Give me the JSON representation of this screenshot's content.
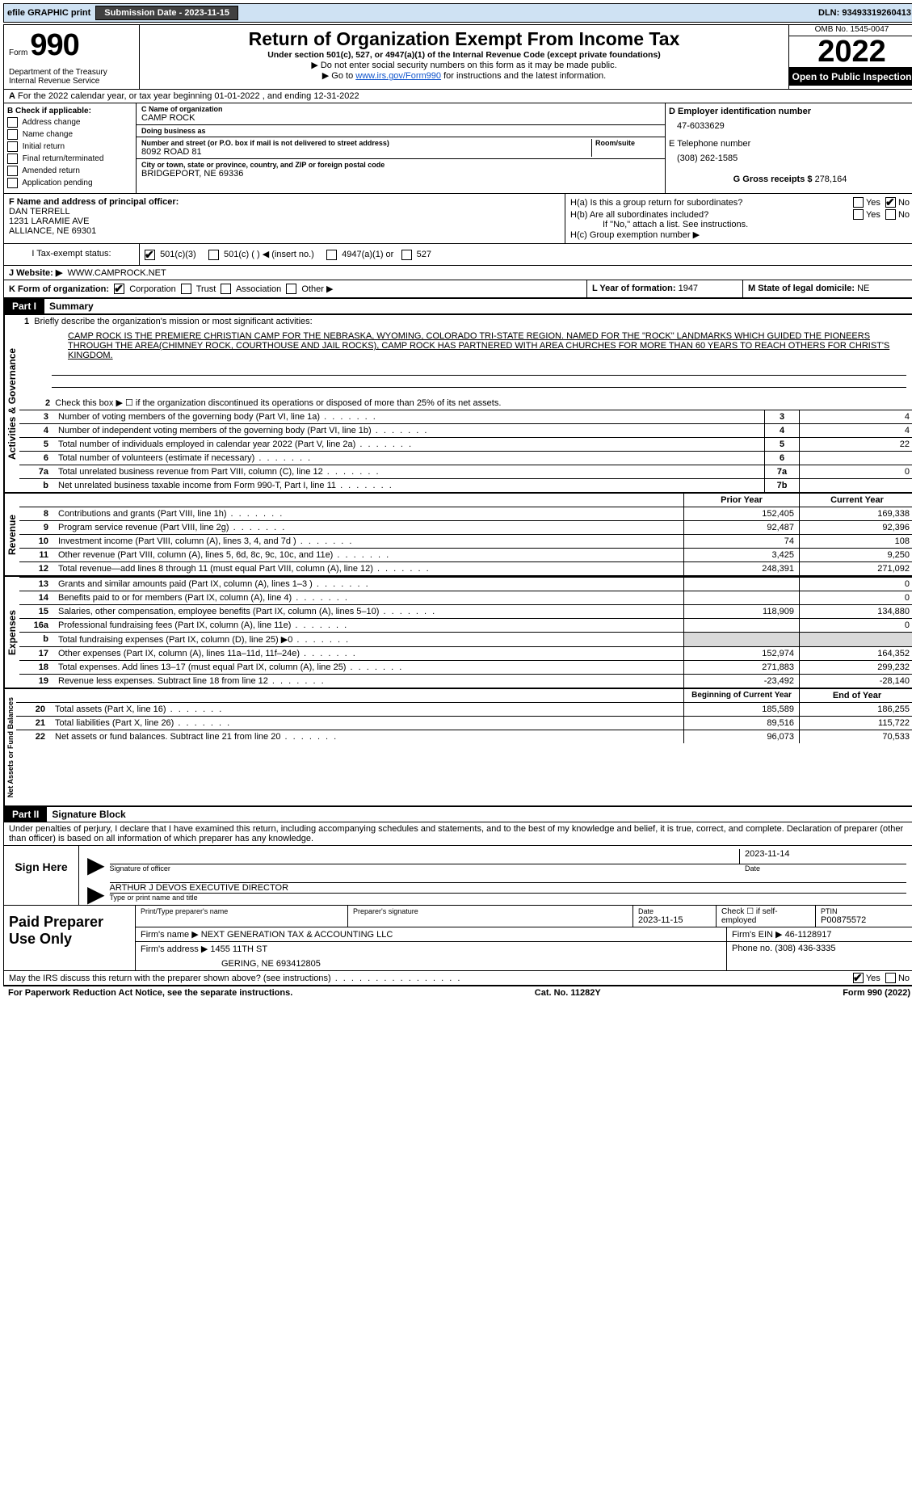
{
  "topbar": {
    "efile": "efile GRAPHIC print",
    "submission_label": "Submission Date - 2023-11-15",
    "dln_label": "DLN: 93493319260413"
  },
  "form_header": {
    "form_word": "Form",
    "form_no": "990",
    "dept": "Department of the Treasury\nInternal Revenue Service",
    "title": "Return of Organization Exempt From Income Tax",
    "subtitle": "Under section 501(c), 527, or 4947(a)(1) of the Internal Revenue Code (except private foundations)",
    "arrow1": "▶ Do not enter social security numbers on this form as it may be made public.",
    "arrow2_pre": "▶ Go to ",
    "arrow2_link": "www.irs.gov/Form990",
    "arrow2_post": " for instructions and the latest information.",
    "omb": "OMB No. 1545-0047",
    "year": "2022",
    "open": "Open to Public Inspection"
  },
  "a_line": {
    "text": "For the 2022 calendar year, or tax year beginning 01-01-2022    , and ending 12-31-2022",
    "a_label": "A"
  },
  "b": {
    "header": "B Check if applicable:",
    "opts": [
      "Address change",
      "Name change",
      "Initial return",
      "Final return/terminated",
      "Amended return",
      "Application pending"
    ]
  },
  "c": {
    "name_lbl": "C Name of organization",
    "name": "CAMP ROCK",
    "dba_lbl": "Doing business as",
    "dba": "",
    "street_lbl": "Number and street (or P.O. box if mail is not delivered to street address)",
    "street": "8092 ROAD 81",
    "room_lbl": "Room/suite",
    "city_lbl": "City or town, state or province, country, and ZIP or foreign postal code",
    "city": "BRIDGEPORT, NE  69336"
  },
  "dright": {
    "d_lbl": "D Employer identification number",
    "d_val": "47-6033629",
    "e_lbl": "E Telephone number",
    "e_val": "(308) 262-1585",
    "g_lbl": "G Gross receipts $",
    "g_val": "278,164"
  },
  "f": {
    "lbl": "F Name and address of principal officer:",
    "name": "DAN TERRELL",
    "addr1": "1231 LARAMIE AVE",
    "addr2": "ALLIANCE, NE  69301"
  },
  "h": {
    "ha": "H(a)  Is this a group return for subordinates?",
    "hb": "H(b)  Are all subordinates included?",
    "hb_note": "If \"No,\" attach a list. See instructions.",
    "hc": "H(c)  Group exemption number ▶",
    "yes": "Yes",
    "no": "No"
  },
  "i": {
    "lbl": "I   Tax-exempt status:",
    "o1": "501(c)(3)",
    "o2": "501(c) (   ) ◀ (insert no.)",
    "o3": "4947(a)(1) or",
    "o4": "527"
  },
  "j": {
    "lbl": "J   Website: ▶",
    "val": "WWW.CAMPROCK.NET"
  },
  "k": {
    "lbl": "K Form of organization:",
    "corp": "Corporation",
    "trust": "Trust",
    "assoc": "Association",
    "other": "Other ▶"
  },
  "l": {
    "lbl": "L Year of formation:",
    "val": "1947"
  },
  "m": {
    "lbl": "M State of legal domicile:",
    "val": "NE"
  },
  "part1": {
    "label": "Part I",
    "title": "Summary",
    "q1": "Briefly describe the organization's mission or most significant activities:",
    "mission": "CAMP ROCK IS THE PREMIERE CHRISTIAN CAMP FOR THE NEBRASKA, WYOMING, COLORADO TRI-STATE REGION. NAMED FOR THE \"ROCK\" LANDMARKS WHICH GUIDED THE PIONEERS THROUGH THE AREA(CHIMNEY ROCK, COURTHOUSE AND JAIL ROCKS), CAMP ROCK HAS PARTNERED WITH AREA CHURCHES FOR MORE THAN 60 YEARS TO REACH OTHERS FOR CHRIST'S KINGDOM.",
    "q2": "Check this box ▶ ☐  if the organization discontinued its operations or disposed of more than 25% of its net assets.",
    "lines_gov": [
      {
        "n": "3",
        "t": "Number of voting members of the governing body (Part VI, line 1a)",
        "box": "3",
        "v": "4"
      },
      {
        "n": "4",
        "t": "Number of independent voting members of the governing body (Part VI, line 1b)",
        "box": "4",
        "v": "4"
      },
      {
        "n": "5",
        "t": "Total number of individuals employed in calendar year 2022 (Part V, line 2a)",
        "box": "5",
        "v": "22"
      },
      {
        "n": "6",
        "t": "Total number of volunteers (estimate if necessary)",
        "box": "6",
        "v": ""
      },
      {
        "n": "7a",
        "t": "Total unrelated business revenue from Part VIII, column (C), line 12",
        "box": "7a",
        "v": "0"
      },
      {
        "n": "b",
        "t": "Net unrelated business taxable income from Form 990-T, Part I, line 11",
        "box": "7b",
        "v": ""
      }
    ],
    "col_prior": "Prior Year",
    "col_current": "Current Year",
    "revenue": [
      {
        "n": "8",
        "t": "Contributions and grants (Part VIII, line 1h)",
        "p": "152,405",
        "c": "169,338"
      },
      {
        "n": "9",
        "t": "Program service revenue (Part VIII, line 2g)",
        "p": "92,487",
        "c": "92,396"
      },
      {
        "n": "10",
        "t": "Investment income (Part VIII, column (A), lines 3, 4, and 7d )",
        "p": "74",
        "c": "108"
      },
      {
        "n": "11",
        "t": "Other revenue (Part VIII, column (A), lines 5, 6d, 8c, 9c, 10c, and 11e)",
        "p": "3,425",
        "c": "9,250"
      },
      {
        "n": "12",
        "t": "Total revenue—add lines 8 through 11 (must equal Part VIII, column (A), line 12)",
        "p": "248,391",
        "c": "271,092"
      }
    ],
    "expenses": [
      {
        "n": "13",
        "t": "Grants and similar amounts paid (Part IX, column (A), lines 1–3 )",
        "p": "",
        "c": "0"
      },
      {
        "n": "14",
        "t": "Benefits paid to or for members (Part IX, column (A), line 4)",
        "p": "",
        "c": "0"
      },
      {
        "n": "15",
        "t": "Salaries, other compensation, employee benefits (Part IX, column (A), lines 5–10)",
        "p": "118,909",
        "c": "134,880"
      },
      {
        "n": "16a",
        "t": "Professional fundraising fees (Part IX, column (A), line 11e)",
        "p": "",
        "c": "0"
      },
      {
        "n": "b",
        "t": "Total fundraising expenses (Part IX, column (D), line 25) ▶0",
        "p": "shaded",
        "c": "shaded"
      },
      {
        "n": "17",
        "t": "Other expenses (Part IX, column (A), lines 11a–11d, 11f–24e)",
        "p": "152,974",
        "c": "164,352"
      },
      {
        "n": "18",
        "t": "Total expenses. Add lines 13–17 (must equal Part IX, column (A), line 25)",
        "p": "271,883",
        "c": "299,232"
      },
      {
        "n": "19",
        "t": "Revenue less expenses. Subtract line 18 from line 12",
        "p": "-23,492",
        "c": "-28,140"
      }
    ],
    "col_begin": "Beginning of Current Year",
    "col_end": "End of Year",
    "netassets": [
      {
        "n": "20",
        "t": "Total assets (Part X, line 16)",
        "p": "185,589",
        "c": "186,255"
      },
      {
        "n": "21",
        "t": "Total liabilities (Part X, line 26)",
        "p": "89,516",
        "c": "115,722"
      },
      {
        "n": "22",
        "t": "Net assets or fund balances. Subtract line 21 from line 20",
        "p": "96,073",
        "c": "70,533"
      }
    ],
    "vlabels": {
      "gov": "Activities & Governance",
      "rev": "Revenue",
      "exp": "Expenses",
      "na": "Net Assets or Fund Balances"
    }
  },
  "part2": {
    "label": "Part II",
    "title": "Signature Block",
    "perjury": "Under penalties of perjury, I declare that I have examined this return, including accompanying schedules and statements, and to the best of my knowledge and belief, it is true, correct, and complete. Declaration of preparer (other than officer) is based on all information of which preparer has any knowledge.",
    "sign_here": "Sign Here",
    "sig_officer": "Signature of officer",
    "sig_date": "Date",
    "sig_date_val": "2023-11-14",
    "sig_name": "ARTHUR J DEVOS  EXECUTIVE DIRECTOR",
    "sig_name_lbl": "Type or print name and title",
    "paid": "Paid Preparer Use Only",
    "prep_name_lbl": "Print/Type preparer's name",
    "prep_sig_lbl": "Preparer's signature",
    "prep_date_lbl": "Date",
    "prep_date": "2023-11-15",
    "prep_check": "Check ☐ if self-employed",
    "ptin_lbl": "PTIN",
    "ptin": "P00875572",
    "firm_name_lbl": "Firm's name    ▶",
    "firm_name": "NEXT GENERATION TAX & ACCOUNTING LLC",
    "firm_ein_lbl": "Firm's EIN ▶",
    "firm_ein": "46-1128917",
    "firm_addr_lbl": "Firm's address ▶",
    "firm_addr1": "1455 11TH ST",
    "firm_addr2": "GERING, NE  693412805",
    "firm_phone_lbl": "Phone no.",
    "firm_phone": "(308) 436-3335",
    "discuss": "May the IRS discuss this return with the preparer shown above? (see instructions)"
  },
  "footer": {
    "pra": "For Paperwork Reduction Act Notice, see the separate instructions.",
    "cat": "Cat. No. 11282Y",
    "form": "Form 990 (2022)"
  }
}
